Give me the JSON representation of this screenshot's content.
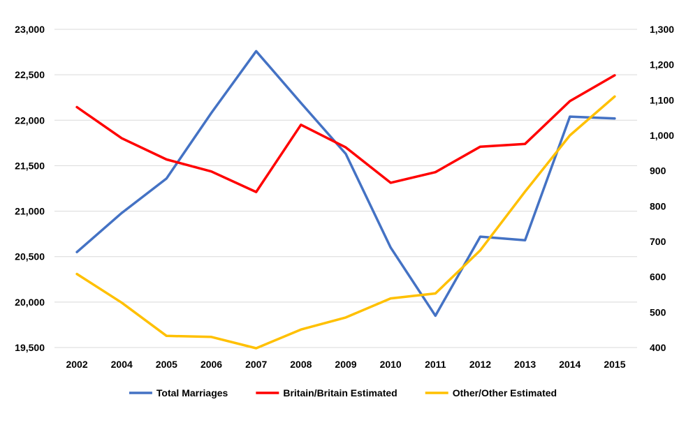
{
  "chart_data": {
    "type": "line",
    "title": "",
    "categories": [
      "2002",
      "2004",
      "2005",
      "2006",
      "2007",
      "2008",
      "2009",
      "2010",
      "2011",
      "2012",
      "2013",
      "2014",
      "2015"
    ],
    "y_left": {
      "ylim": [
        19500,
        23000
      ],
      "ticks": [
        19500,
        20000,
        20500,
        21000,
        21500,
        22000,
        22500,
        23000
      ],
      "tick_labels": [
        "19,500",
        "20,000",
        "20,500",
        "21,000",
        "21,500",
        "22,000",
        "22,500",
        "23,000"
      ]
    },
    "y_right": {
      "ylim": [
        400,
        1300
      ],
      "ticks": [
        400,
        500,
        600,
        700,
        800,
        900,
        1000,
        1100,
        1200,
        1300
      ],
      "tick_labels": [
        "400",
        "500",
        "600",
        "700",
        "800",
        "900",
        "1,000",
        "1,100",
        "1,200",
        "1,300"
      ]
    },
    "series": [
      {
        "name": "Total Marriages",
        "axis": "left",
        "color": "#4472C4",
        "values": [
          20550,
          20980,
          21360,
          22080,
          22760,
          22190,
          21630,
          20600,
          19850,
          20720,
          20680,
          22040,
          22020
        ]
      },
      {
        "name": "Britain/Britain Estimated",
        "axis": "right",
        "color": "#FF0000",
        "values": [
          1080,
          992,
          932,
          898,
          840,
          1030,
          966,
          866,
          896,
          968,
          976,
          1097,
          1170
        ]
      },
      {
        "name": "Other/Other Estimated",
        "axis": "right",
        "color": "#FFC000",
        "values": [
          608,
          527,
          433,
          430,
          398,
          451,
          485,
          539,
          553,
          675,
          841,
          1000,
          1110
        ]
      }
    ],
    "grid": true,
    "legend_position": "bottom"
  }
}
